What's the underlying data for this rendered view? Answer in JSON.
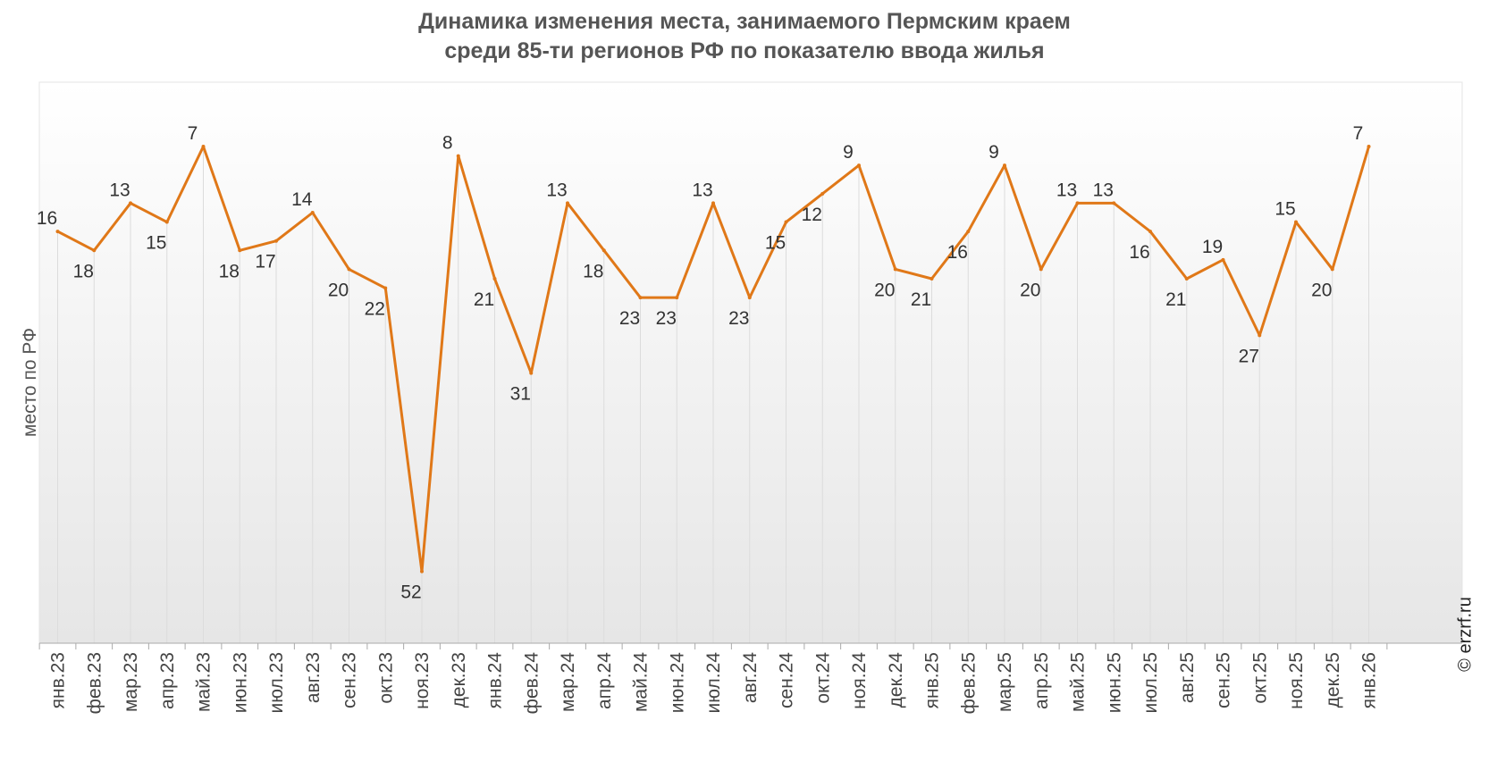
{
  "chart_data": {
    "type": "line",
    "title_lines": [
      "Динамика изменения места, занимаемого Пермским краем",
      "среди 85-ти регионов РФ по показателю ввода жилья"
    ],
    "ylabel": "место по РФ",
    "xlabel": "",
    "y_axis_inverted": true,
    "categories": [
      "янв.23",
      "фев.23",
      "мар.23",
      "апр.23",
      "май.23",
      "июн.23",
      "июл.23",
      "авг.23",
      "сен.23",
      "окт.23",
      "ноя.23",
      "дек.23",
      "янв.24",
      "фев.24",
      "мар.24",
      "апр.24",
      "май.24",
      "июн.24",
      "июл.24",
      "авг.24",
      "сен.24",
      "окт.24",
      "ноя.24",
      "дек.24",
      "янв.25",
      "фев.25",
      "мар.25",
      "апр.25",
      "май.25",
      "июн.25",
      "июл.25",
      "авг.25",
      "сен.25",
      "окт.25",
      "ноя.25",
      "дек.25",
      "янв.26"
    ],
    "series": [
      {
        "values": [
          16,
          18,
          13,
          15,
          7,
          18,
          17,
          14,
          20,
          22,
          52,
          8,
          21,
          31,
          13,
          18,
          23,
          23,
          13,
          23,
          15,
          12,
          9,
          20,
          21,
          16,
          9,
          20,
          13,
          13,
          16,
          21,
          19,
          27,
          15,
          20,
          7
        ],
        "color": "#e07818"
      }
    ],
    "data_labels_visible": true,
    "legend": "none",
    "grid": "vertical lines at categories"
  },
  "watermark": "© erzrf.ru"
}
